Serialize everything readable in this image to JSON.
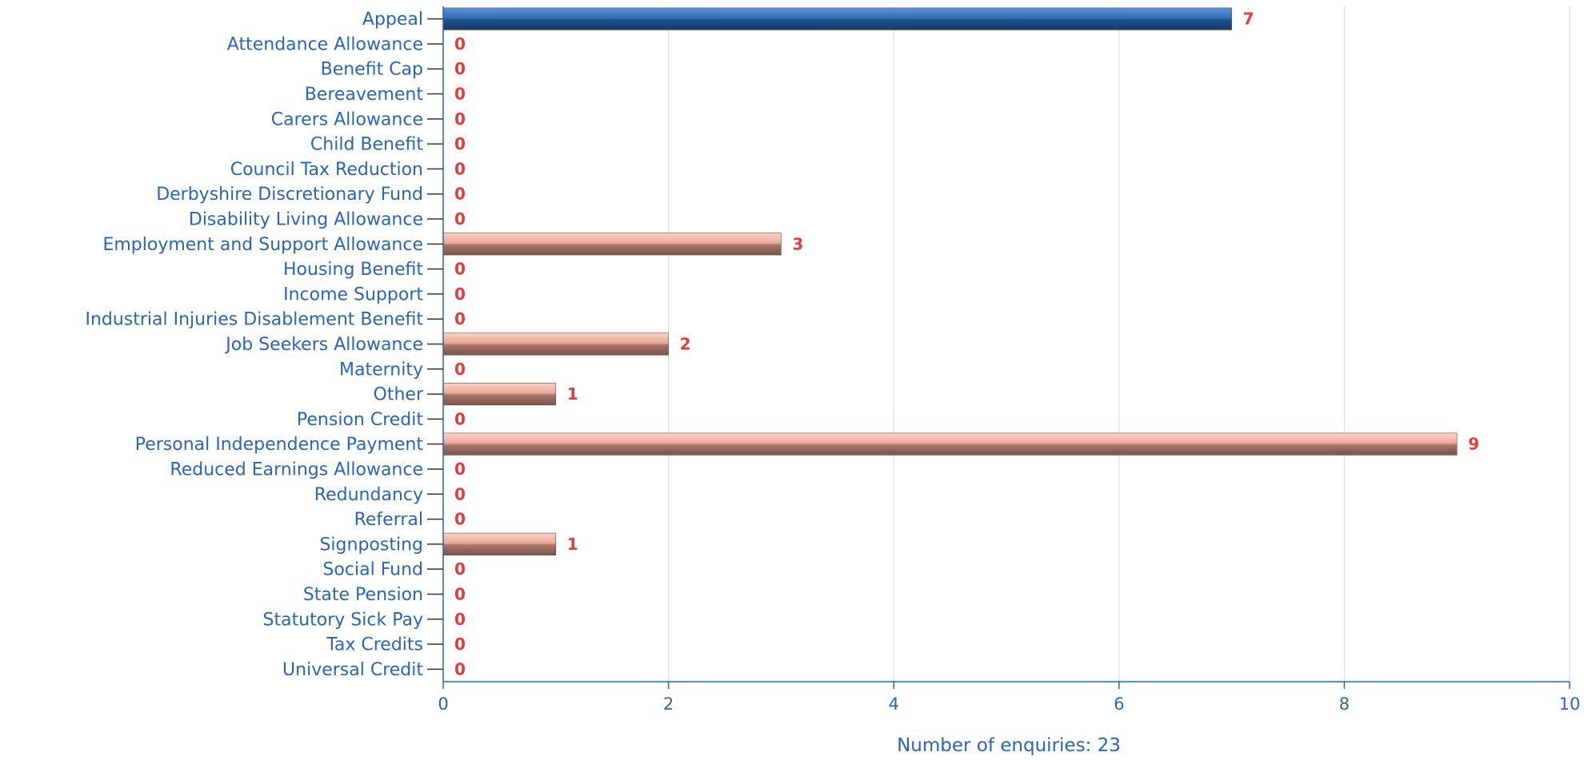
{
  "chart_data": {
    "type": "bar",
    "orientation": "horizontal",
    "categories": [
      "Appeal",
      "Attendance Allowance",
      "Benefit Cap",
      "Bereavement",
      "Carers Allowance",
      "Child Benefit",
      "Council Tax Reduction",
      "Derbyshire Discretionary Fund",
      "Disability Living Allowance",
      "Employment and Support Allowance",
      "Housing Benefit",
      "Income Support",
      "Industrial Injuries Disablement Benefit",
      "Job Seekers Allowance",
      "Maternity",
      "Other",
      "Pension Credit",
      "Personal Independence Payment",
      "Reduced Earnings Allowance",
      "Redundancy",
      "Referral",
      "Signposting",
      "Social Fund",
      "State Pension",
      "Statutory Sick Pay",
      "Tax Credits",
      "Universal Credit"
    ],
    "values": [
      7,
      0,
      0,
      0,
      0,
      0,
      0,
      0,
      0,
      3,
      0,
      0,
      0,
      2,
      0,
      1,
      0,
      9,
      0,
      0,
      0,
      1,
      0,
      0,
      0,
      0,
      0
    ],
    "highlight_index": 0,
    "title": "",
    "xlabel": "Number of enquiries: 23",
    "ylabel": "",
    "xlim": [
      0,
      10
    ],
    "xticks": [
      0,
      2,
      4,
      6,
      8,
      10
    ],
    "grid": "vertical",
    "legend": "none",
    "colors": {
      "highlight_bar": "#2f6db5",
      "bar": "#e8a898",
      "label_text": "#2a64b8",
      "value_text": "#e83a3a",
      "grid": "#dddddd",
      "axis": "#2a64b8"
    }
  }
}
